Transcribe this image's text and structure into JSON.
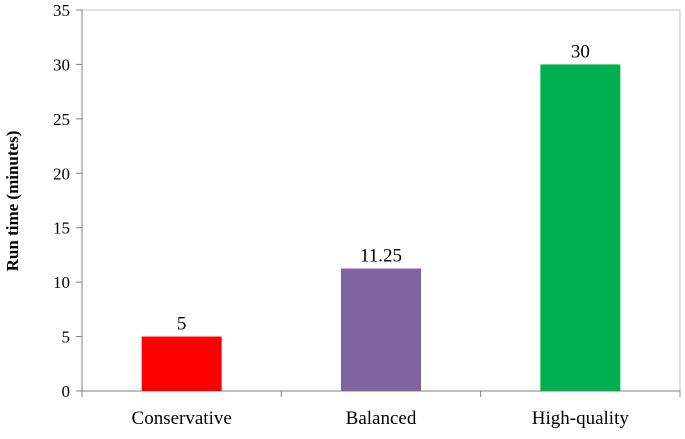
{
  "chart_data": {
    "type": "bar",
    "title": "",
    "xlabel": "",
    "ylabel": "Run time (minutes)",
    "categories": [
      "Conservative",
      "Balanced",
      "High-quality"
    ],
    "values": [
      5,
      11.25,
      30
    ],
    "value_labels": [
      "5",
      "11.25",
      "30"
    ],
    "colors": [
      "#ff0000",
      "#8064a2",
      "#00b050"
    ],
    "ylim": [
      0,
      35
    ],
    "yticks": [
      0,
      5,
      10,
      15,
      20,
      25,
      30,
      35
    ],
    "grid": false,
    "legend": "none"
  }
}
